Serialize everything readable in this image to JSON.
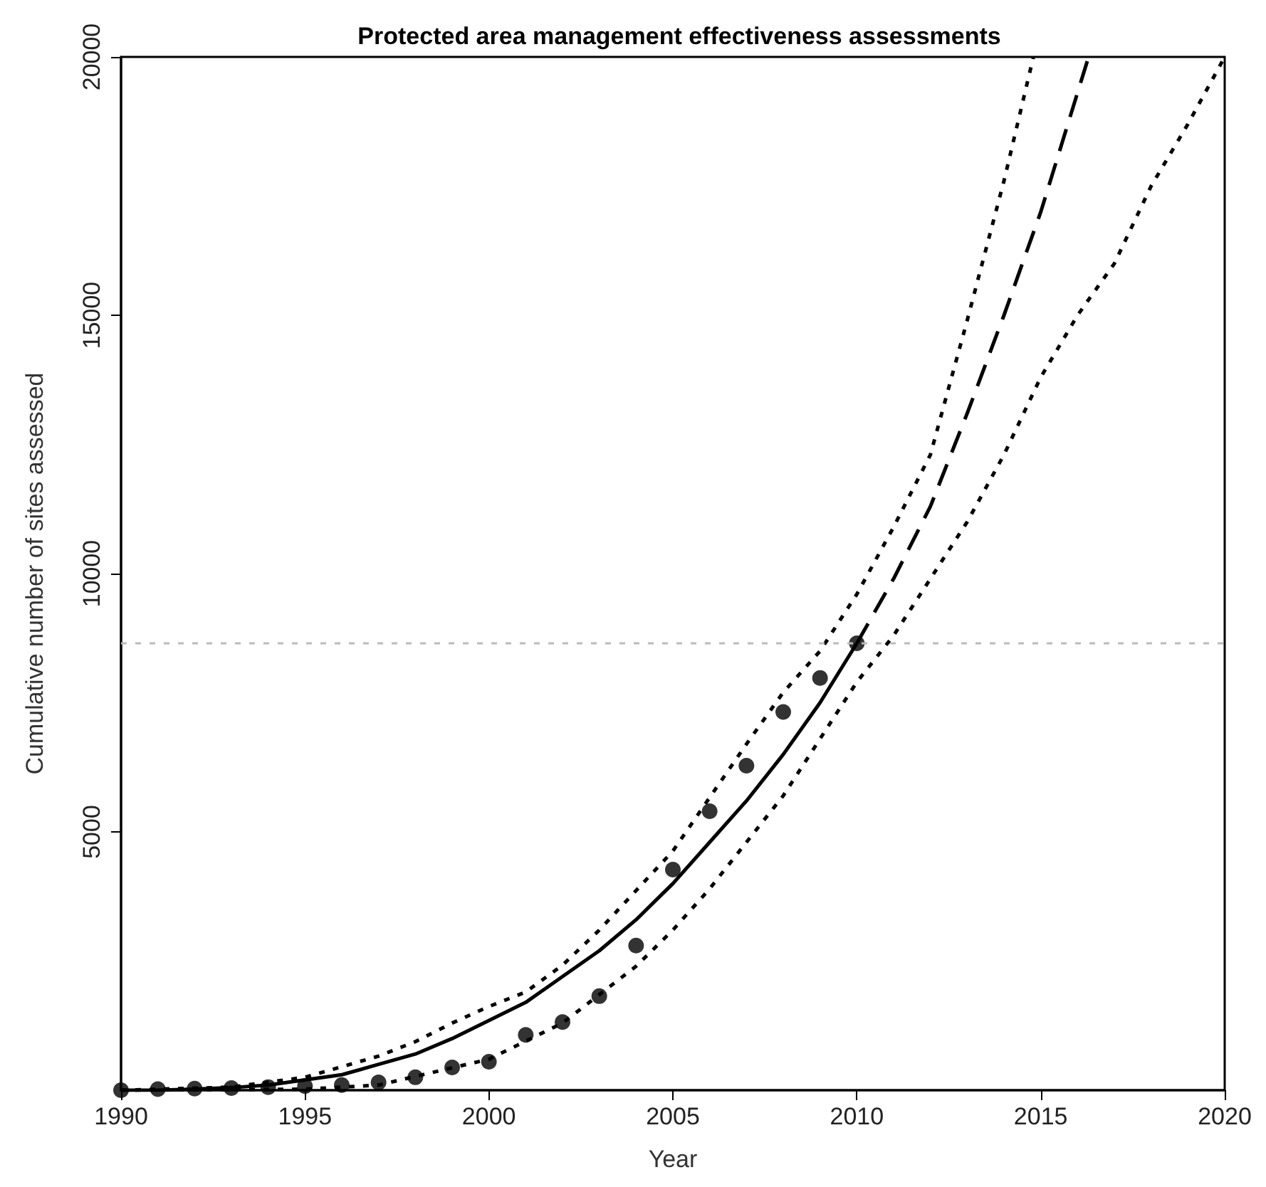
{
  "chart_data": {
    "type": "line",
    "title": "Protected area management effectiveness assessments",
    "xlabel": "Year",
    "ylabel": "Cumulative number of sites assessed",
    "xlim": [
      1990,
      2020
    ],
    "xticks": [
      1990,
      1995,
      2000,
      2005,
      2010,
      2015,
      2020
    ],
    "ylim": [
      0,
      20000
    ],
    "yticks": [
      5000,
      10000,
      15000,
      20000
    ],
    "ref_lines": [
      {
        "axis": "y",
        "value": 8650,
        "color": "#bbbbbb",
        "line_style": "dotted"
      }
    ],
    "series": [
      {
        "type": "scatter",
        "marker": "circle",
        "color": "#000000",
        "x": [
          1990,
          1991,
          1992,
          1993,
          1994,
          1995,
          1996,
          1997,
          1998,
          1999,
          2000,
          2001,
          2002,
          2003,
          2004,
          2005,
          2006,
          2007,
          2008,
          2009,
          2010
        ],
        "values": [
          0,
          20,
          30,
          40,
          60,
          80,
          100,
          150,
          250,
          440,
          550,
          1070,
          1320,
          1820,
          2800,
          4270,
          5400,
          6280,
          7320,
          7980,
          8650
        ]
      },
      {
        "line_style": "solid",
        "marker": "none",
        "color": "#000000",
        "x": [
          1990,
          1991,
          1992,
          1993,
          1994,
          1995,
          1996,
          1997,
          1998,
          1999,
          2000,
          2001,
          2002,
          2003,
          2004,
          2005,
          2006,
          2007,
          2008,
          2009,
          2010
        ],
        "values": [
          0,
          0,
          20,
          50,
          100,
          200,
          300,
          500,
          700,
          1000,
          1350,
          1700,
          2200,
          2700,
          3300,
          4000,
          4800,
          5600,
          6500,
          7500,
          8650
        ]
      },
      {
        "line_style": "dashed",
        "marker": "none",
        "color": "#000000",
        "x": [
          2010,
          2011,
          2012,
          2013,
          2014,
          2015,
          2016.3
        ],
        "values": [
          8650,
          9900,
          11300,
          13100,
          15000,
          17000,
          20000
        ]
      },
      {
        "line_style": "dotted",
        "marker": "none",
        "color": "#000000",
        "x": [
          1990,
          1993,
          1995,
          1997,
          1998,
          1999,
          2000,
          2001,
          2002,
          2003,
          2005,
          2007,
          2008,
          2009,
          2010,
          2011,
          2012,
          2013,
          2014,
          2014.8
        ],
        "values": [
          0,
          60,
          250,
          660,
          940,
          1300,
          1620,
          1900,
          2420,
          3100,
          4630,
          6700,
          7700,
          8500,
          9600,
          10900,
          12300,
          14900,
          17600,
          20000
        ]
      },
      {
        "line_style": "dotted",
        "marker": "none",
        "color": "#000000",
        "x": [
          1990,
          1995,
          1997,
          2000,
          2002,
          2004,
          2005,
          2006,
          2007,
          2008,
          2009,
          2010,
          2011,
          2012,
          2013,
          2014,
          2015,
          2016,
          2017,
          2018,
          2019,
          2020
        ],
        "values": [
          0,
          20,
          100,
          600,
          1300,
          2400,
          3100,
          3900,
          4800,
          5700,
          6800,
          7900,
          8800,
          9900,
          11000,
          12300,
          13800,
          15000,
          16000,
          17500,
          18700,
          20000
        ]
      }
    ]
  }
}
